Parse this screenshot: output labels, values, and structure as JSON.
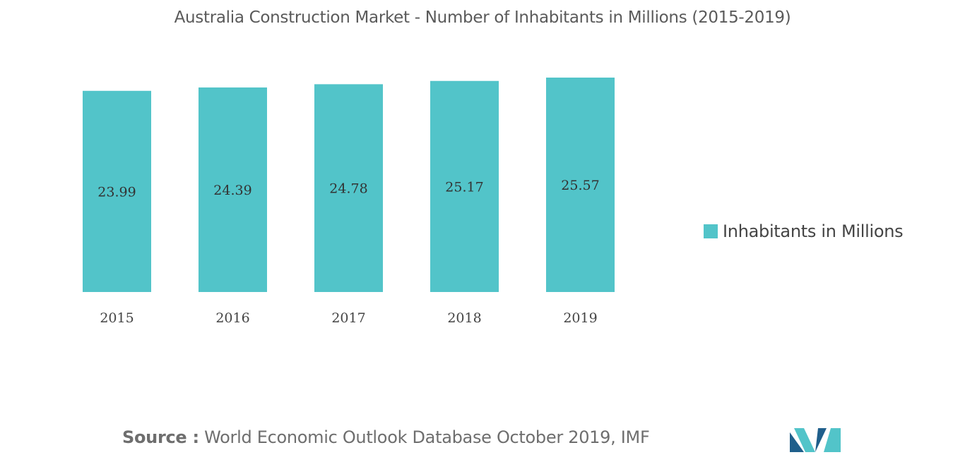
{
  "chart_data": {
    "type": "bar",
    "title": "Australia Construction Market - Number of Inhabitants in Millions (2015-2019)",
    "categories": [
      "2015",
      "2016",
      "2017",
      "2018",
      "2019"
    ],
    "series": [
      {
        "name": "Inhabitants in Millions",
        "values": [
          23.99,
          24.39,
          24.78,
          25.17,
          25.57
        ]
      }
    ],
    "data_labels": [
      "23.99",
      "24.39",
      "24.78",
      "25.17",
      "25.57"
    ],
    "ylim": [
      0,
      25.57
    ],
    "grid": false,
    "legend_position": "right"
  },
  "source": {
    "label": "Source :",
    "text": "World Economic Outlook Database October 2019, IMF"
  },
  "colors": {
    "bar": "#52c4c9",
    "text": "#333333",
    "logo_dark": "#1f5f8b",
    "logo_light": "#52c4c9"
  }
}
